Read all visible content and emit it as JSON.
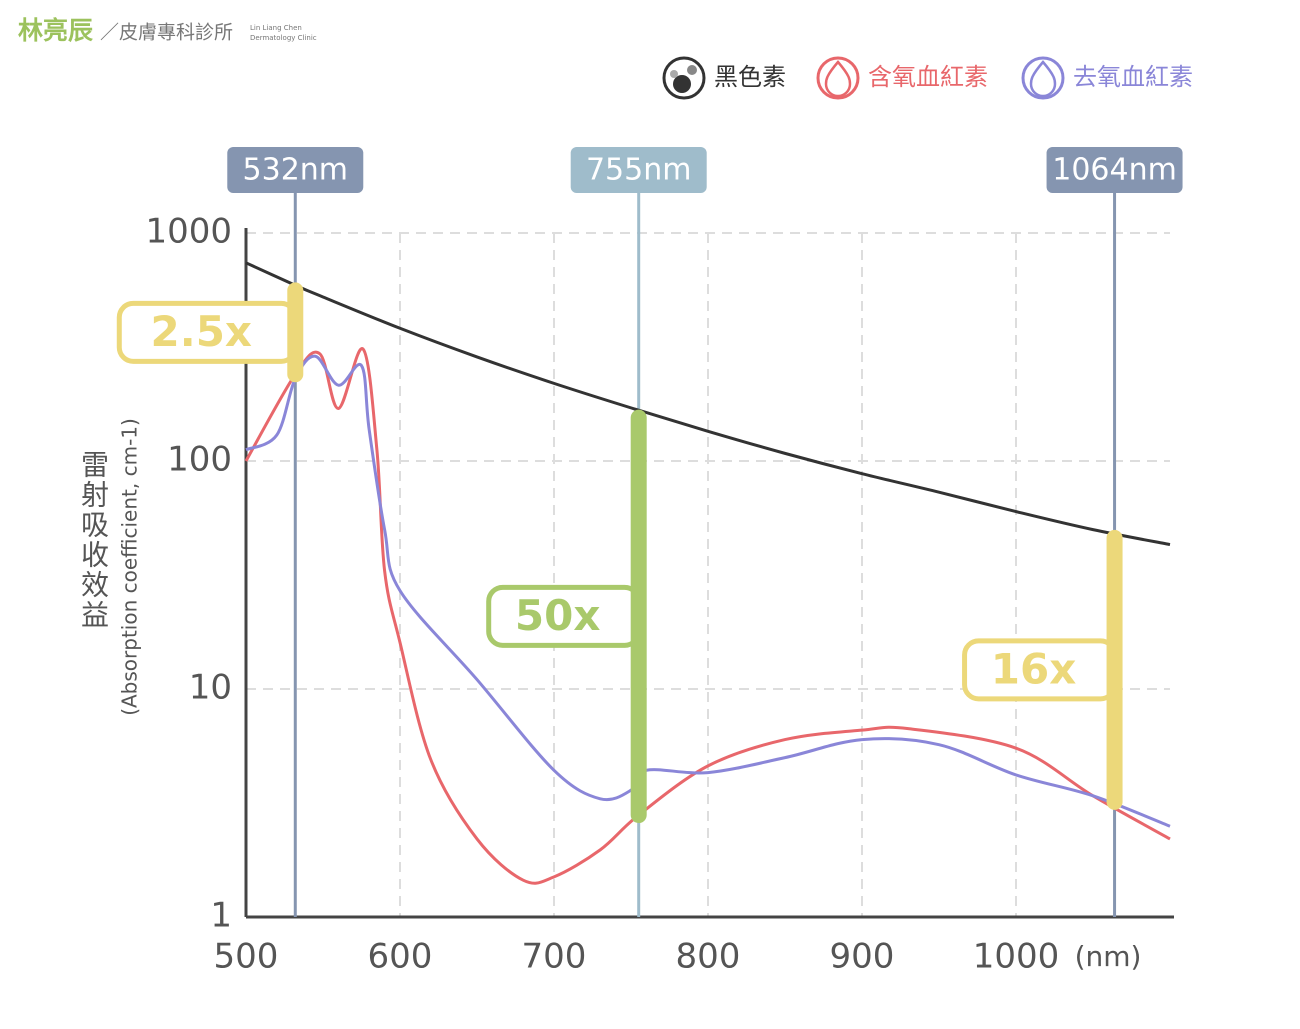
{
  "header": {
    "brand": "林亮辰",
    "clinic": "／皮膚專科診所",
    "en_name": "Lin Liang Chen",
    "en_clinic": "Dermatology Clinic"
  },
  "chart_data": {
    "type": "line",
    "log_y": true,
    "grid": true,
    "y_label": "雷射吸收效益",
    "y_label_en": "(Absorption coefficient, cm-1)",
    "x_unit": "(nm)",
    "xlim": [
      500,
      1100
    ],
    "ylim": [
      1,
      1000
    ],
    "xticks": [
      500,
      600,
      700,
      800,
      900,
      1000
    ],
    "yticks": [
      1,
      10,
      100,
      1000
    ],
    "series": [
      {
        "name": "黑色素",
        "color": "#333333",
        "x": [
          500,
          532,
          550,
          600,
          650,
          700,
          750,
          800,
          850,
          900,
          950,
          1000,
          1050,
          1100
        ],
        "values": [
          740,
          590,
          524,
          382,
          286,
          219,
          171,
          135,
          108,
          88,
          73,
          60,
          50,
          43
        ]
      },
      {
        "name": "含氧血紅素",
        "color": "#e8676b",
        "x": [
          500,
          532,
          548,
          560,
          576,
          585,
          590,
          600,
          620,
          650,
          680,
          700,
          730,
          755,
          800,
          850,
          900,
          930,
          1000,
          1050,
          1100
        ],
        "values": [
          100,
          240,
          295,
          170,
          310,
          112,
          33,
          16,
          4.9,
          2.2,
          1.45,
          1.5,
          1.97,
          2.8,
          4.6,
          6.0,
          6.6,
          6.7,
          5.5,
          3.4,
          2.2
        ]
      },
      {
        "name": "去氧血紅素",
        "color": "#8a86d8",
        "x": [
          500,
          520,
          532,
          545,
          560,
          575,
          580,
          590,
          600,
          650,
          700,
          730,
          750,
          760,
          800,
          850,
          900,
          950,
          1000,
          1050,
          1100
        ],
        "values": [
          112,
          130,
          230,
          288,
          215,
          262,
          137,
          50,
          27,
          11,
          4.4,
          3.3,
          3.6,
          4.4,
          4.3,
          5.0,
          6.0,
          5.7,
          4.2,
          3.4,
          2.5
        ]
      }
    ],
    "lasers": [
      {
        "wavelength": 532,
        "label": "532nm",
        "color": "#8595b0",
        "ratio_label": "2.5x",
        "ratio_color": "#ecd87a",
        "range": [
          240,
          560
        ]
      },
      {
        "wavelength": 755,
        "label": "755nm",
        "color": "#9fbccb",
        "ratio_label": "50x",
        "ratio_color": "#a9c96b",
        "range": [
          2.8,
          155
        ]
      },
      {
        "wavelength": 1064,
        "label": "1064nm",
        "color": "#8595b0",
        "ratio_label": "16x",
        "ratio_color": "#ecd87a",
        "range": [
          3.2,
          46
        ]
      }
    ]
  }
}
